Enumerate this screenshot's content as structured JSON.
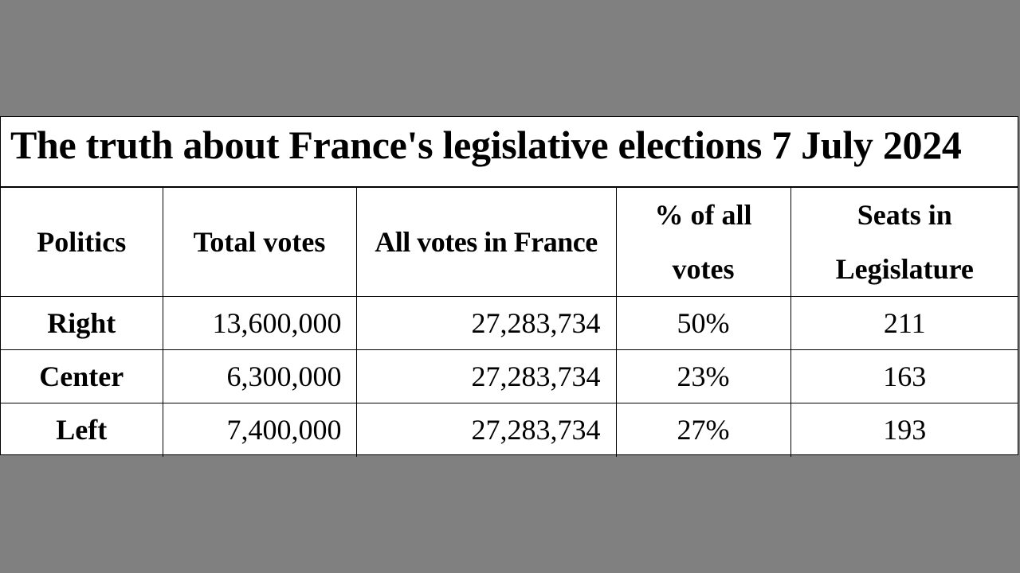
{
  "title": "The truth about France's legislative elections 7 July 2024",
  "table": {
    "headers": [
      "Politics",
      "Total votes",
      "All votes in France",
      "% of all votes",
      "Seats in Legislature"
    ],
    "rows": [
      {
        "politics": "Right",
        "total_votes": "13,600,000",
        "all_votes": "27,283,734",
        "percent": "50%",
        "seats": "211"
      },
      {
        "politics": "Center",
        "total_votes": "6,300,000",
        "all_votes": "27,283,734",
        "percent": "23%",
        "seats": "163"
      },
      {
        "politics": "Left",
        "total_votes": "7,400,000",
        "all_votes": "27,283,734",
        "percent": "27%",
        "seats": "193"
      }
    ]
  },
  "colors": {
    "background": "#808080",
    "sheet": "#ffffff",
    "text": "#000000"
  }
}
